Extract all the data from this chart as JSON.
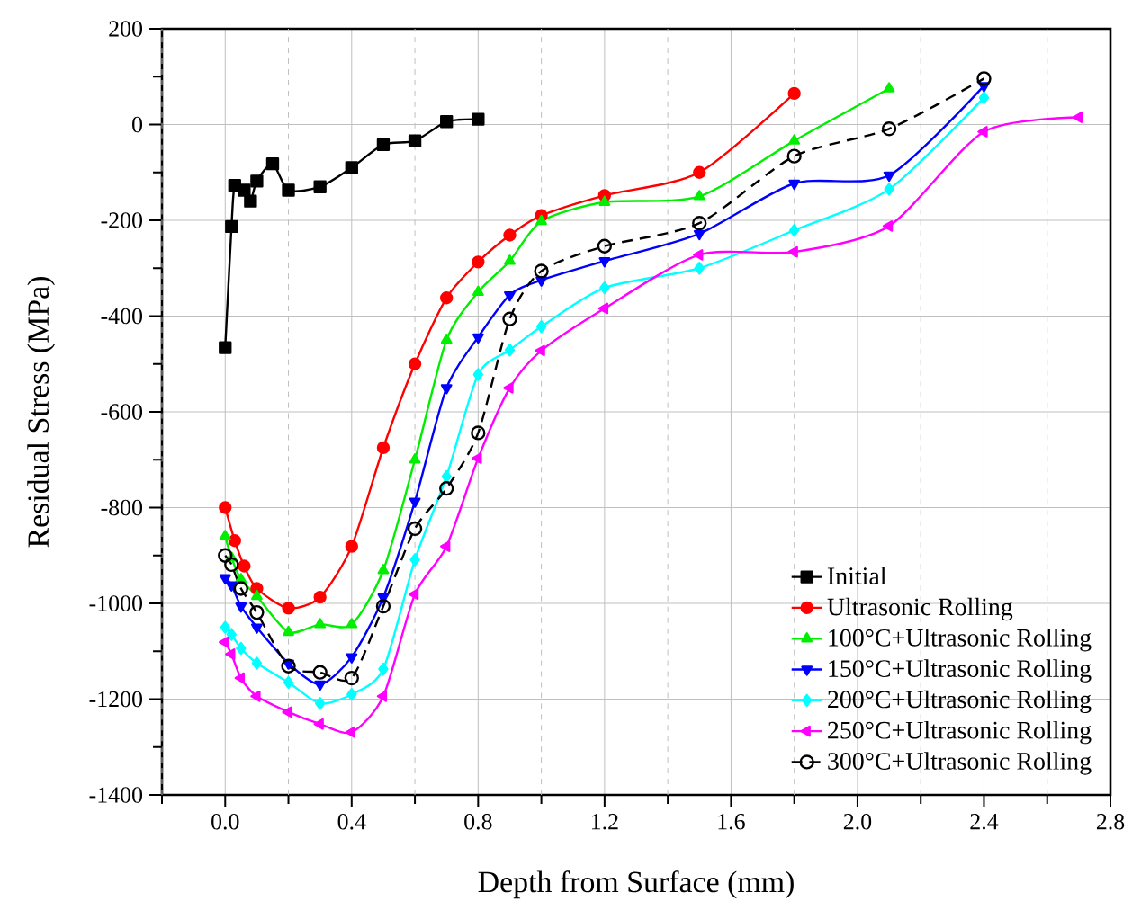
{
  "chart_data": {
    "type": "line",
    "xlabel": "Depth from Surface (mm)",
    "ylabel": "Residual Stress (MPa)",
    "xlim": [
      -0.2,
      2.8
    ],
    "ylim": [
      -1400,
      200
    ],
    "xticks": [
      {
        "value": -0.2,
        "label": null
      },
      {
        "value": 0,
        "label": "0.0"
      },
      {
        "value": 0.2,
        "label": null
      },
      {
        "value": 0.4,
        "label": "0.4"
      },
      {
        "value": 0.6,
        "label": null
      },
      {
        "value": 0.8,
        "label": "0.8"
      },
      {
        "value": 1.0,
        "label": null
      },
      {
        "value": 1.2,
        "label": "1.2"
      },
      {
        "value": 1.4,
        "label": null
      },
      {
        "value": 1.6,
        "label": "1.6"
      },
      {
        "value": 1.8,
        "label": null
      },
      {
        "value": 2.0,
        "label": "2.0"
      },
      {
        "value": 2.2,
        "label": null
      },
      {
        "value": 2.4,
        "label": "2.4"
      },
      {
        "value": 2.6,
        "label": null
      },
      {
        "value": 2.8,
        "label": "2.8"
      }
    ],
    "yticks": [
      -1400,
      {
        "value": -1300,
        "label": null
      },
      -1200,
      {
        "value": -1100,
        "label": null
      },
      -1000,
      {
        "value": -900,
        "label": null
      },
      -800,
      {
        "value": -700,
        "label": null
      },
      -600,
      {
        "value": -500,
        "label": null
      },
      -400,
      {
        "value": -300,
        "label": null
      },
      -200,
      {
        "value": -100,
        "label": null
      },
      0,
      {
        "value": 100,
        "label": null
      },
      200
    ],
    "grid": true,
    "legend": "bottom right",
    "series": [
      {
        "name": "Initial",
        "color": "#000000",
        "marker": "square",
        "line_style": "solid",
        "x": [
          0,
          0.02,
          0.03,
          0.06,
          0.08,
          0.1,
          0.15,
          0.2,
          0.3,
          0.4,
          0.5,
          0.6,
          0.7,
          0.8
        ],
        "values": [
          -466,
          -213,
          -127,
          -137,
          -160,
          -118,
          -82,
          -137,
          -130,
          -90,
          -42,
          -34,
          6,
          11
        ]
      },
      {
        "name": "Ultrasonic Rolling",
        "color": "#ff0000",
        "marker": "circle",
        "line_style": "solid",
        "x": [
          0,
          0.03,
          0.06,
          0.1,
          0.2,
          0.3,
          0.4,
          0.5,
          0.6,
          0.7,
          0.8,
          0.9,
          1.0,
          1.2,
          1.5,
          1.8
        ],
        "values": [
          -800,
          -869,
          -922,
          -969,
          -1010,
          -987,
          -881,
          -675,
          -500,
          -362,
          -287,
          -231,
          -190,
          -148,
          -100,
          65
        ]
      },
      {
        "name": "100°C+Ultrasonic Rolling",
        "color": "#00ee00",
        "marker": "triangle",
        "line_style": "solid",
        "x": [
          0,
          0.02,
          0.05,
          0.1,
          0.2,
          0.3,
          0.4,
          0.5,
          0.6,
          0.7,
          0.8,
          0.9,
          1.0,
          1.2,
          1.5,
          1.8,
          2.1
        ],
        "values": [
          -860,
          -905,
          -950,
          -985,
          -1060,
          -1044,
          -1044,
          -931,
          -700,
          -450,
          -350,
          -285,
          -202,
          -162,
          -150,
          -34,
          75
        ]
      },
      {
        "name": "150°C+Ultrasonic Rolling",
        "color": "#0000ff",
        "marker": "triangle down",
        "line_style": "solid",
        "x": [
          0,
          0.02,
          0.05,
          0.1,
          0.2,
          0.3,
          0.4,
          0.5,
          0.6,
          0.7,
          0.8,
          0.9,
          1.0,
          1.2,
          1.5,
          1.8,
          2.1,
          2.4
        ],
        "values": [
          -947,
          -962,
          -1006,
          -1050,
          -1125,
          -1169,
          -1112,
          -987,
          -787,
          -550,
          -444,
          -356,
          -325,
          -285,
          -228,
          -123,
          -106,
          81
        ]
      },
      {
        "name": "200°C+Ultrasonic Rolling",
        "color": "#00ffff",
        "marker": "diamond",
        "line_style": "solid",
        "x": [
          0,
          0.02,
          0.05,
          0.1,
          0.2,
          0.3,
          0.4,
          0.5,
          0.6,
          0.7,
          0.8,
          0.9,
          1.0,
          1.2,
          1.5,
          1.8,
          2.1,
          2.4
        ],
        "values": [
          -1050,
          -1065,
          -1094,
          -1125,
          -1165,
          -1209,
          -1190,
          -1137,
          -909,
          -735,
          -522,
          -471,
          -422,
          -341,
          -300,
          -221,
          -135,
          56
        ]
      },
      {
        "name": "250°C+Ultrasonic Rolling",
        "color": "#ff00ff",
        "marker": "triangle left",
        "line_style": "solid",
        "x": [
          0,
          0.02,
          0.05,
          0.1,
          0.2,
          0.3,
          0.4,
          0.5,
          0.6,
          0.7,
          0.8,
          0.9,
          1.0,
          1.2,
          1.5,
          1.8,
          2.1,
          2.4,
          2.7
        ],
        "values": [
          -1081,
          -1106,
          -1156,
          -1194,
          -1227,
          -1252,
          -1269,
          -1194,
          -981,
          -881,
          -697,
          -550,
          -472,
          -384,
          -272,
          -266,
          -212,
          -15,
          15
        ]
      },
      {
        "name": "300°C+Ultrasonic Rolling",
        "color": "#000000",
        "marker": "circle",
        "line_style": "dashed",
        "x": [
          0,
          0.02,
          0.05,
          0.1,
          0.2,
          0.3,
          0.4,
          0.5,
          0.6,
          0.7,
          0.8,
          0.9,
          1.0,
          1.2,
          1.5,
          1.8,
          2.1,
          2.4
        ],
        "values": [
          -900,
          -919,
          -969,
          -1019,
          -1131,
          -1144,
          -1156,
          -1006,
          -844,
          -760,
          -644,
          -406,
          -306,
          -254,
          -206,
          -66,
          -9,
          96
        ]
      }
    ]
  }
}
